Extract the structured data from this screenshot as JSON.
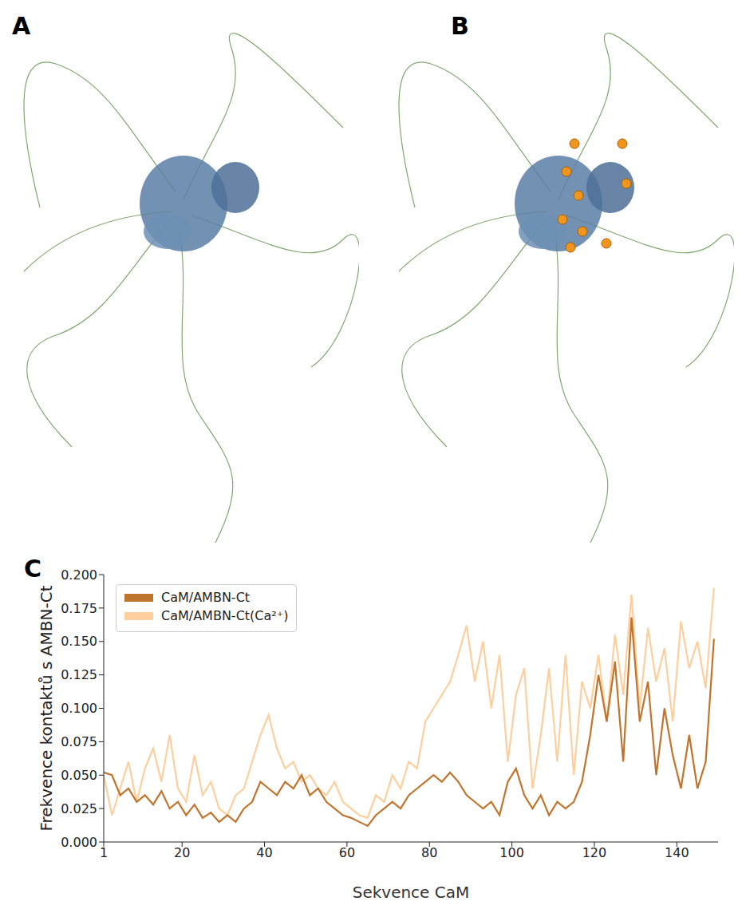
{
  "panel_labels": [
    "A",
    "B",
    "C"
  ],
  "chart_data": {
    "type": "line",
    "x_label": "Sekvence CaM",
    "y_label": "Frekvence kontaktů s AMBN-Ct",
    "x": [
      1,
      3,
      5,
      7,
      9,
      11,
      13,
      15,
      17,
      19,
      21,
      23,
      25,
      27,
      29,
      31,
      33,
      35,
      37,
      39,
      41,
      43,
      45,
      47,
      49,
      51,
      53,
      55,
      57,
      59,
      61,
      63,
      65,
      67,
      69,
      71,
      73,
      75,
      77,
      79,
      81,
      83,
      85,
      87,
      89,
      91,
      93,
      95,
      97,
      99,
      101,
      103,
      105,
      107,
      109,
      111,
      113,
      115,
      117,
      119,
      121,
      123,
      125,
      127,
      129,
      131,
      133,
      135,
      137,
      139,
      141,
      143,
      145,
      147,
      149
    ],
    "series": [
      {
        "name": "CaM/AMBN-Ct",
        "color": "#c0752e",
        "values": [
          0.052,
          0.05,
          0.035,
          0.04,
          0.03,
          0.035,
          0.028,
          0.038,
          0.025,
          0.03,
          0.02,
          0.028,
          0.018,
          0.022,
          0.015,
          0.02,
          0.015,
          0.025,
          0.03,
          0.045,
          0.04,
          0.035,
          0.045,
          0.04,
          0.05,
          0.035,
          0.04,
          0.03,
          0.025,
          0.02,
          0.018,
          0.015,
          0.012,
          0.02,
          0.025,
          0.03,
          0.025,
          0.035,
          0.04,
          0.045,
          0.05,
          0.045,
          0.052,
          0.045,
          0.035,
          0.03,
          0.025,
          0.03,
          0.02,
          0.045,
          0.055,
          0.035,
          0.025,
          0.035,
          0.02,
          0.03,
          0.025,
          0.03,
          0.045,
          0.08,
          0.125,
          0.09,
          0.135,
          0.06,
          0.168,
          0.09,
          0.12,
          0.05,
          0.1,
          0.065,
          0.04,
          0.08,
          0.04,
          0.06,
          0.152
        ]
      },
      {
        "name": "CaM/AMBN-Ct(Ca²⁺)",
        "color": "#fdcf9e",
        "values": [
          0.05,
          0.02,
          0.04,
          0.06,
          0.03,
          0.055,
          0.07,
          0.045,
          0.08,
          0.04,
          0.03,
          0.065,
          0.035,
          0.045,
          0.025,
          0.02,
          0.035,
          0.04,
          0.06,
          0.08,
          0.095,
          0.07,
          0.055,
          0.06,
          0.045,
          0.05,
          0.04,
          0.035,
          0.045,
          0.03,
          0.025,
          0.02,
          0.018,
          0.035,
          0.03,
          0.05,
          0.04,
          0.06,
          0.055,
          0.09,
          0.1,
          0.11,
          0.12,
          0.14,
          0.162,
          0.12,
          0.15,
          0.1,
          0.14,
          0.06,
          0.11,
          0.13,
          0.04,
          0.08,
          0.13,
          0.06,
          0.14,
          0.05,
          0.12,
          0.1,
          0.14,
          0.09,
          0.155,
          0.11,
          0.185,
          0.1,
          0.16,
          0.12,
          0.145,
          0.09,
          0.165,
          0.13,
          0.15,
          0.115,
          0.19
        ]
      }
    ],
    "xlim": [
      1,
      150
    ],
    "xticks": [
      1,
      20,
      40,
      60,
      80,
      100,
      120,
      140
    ],
    "ylim": [
      0,
      0.2
    ],
    "yticks": [
      {
        "value": 0,
        "label": "0.000"
      },
      {
        "value": 0.025,
        "label": "0.025"
      },
      {
        "value": 0.05,
        "label": "0.050"
      },
      {
        "value": 0.075,
        "label": "0.075"
      },
      {
        "value": 0.1,
        "label": "0.100"
      },
      {
        "value": 0.125,
        "label": "0.125"
      },
      {
        "value": 0.15,
        "label": "0.150"
      },
      {
        "value": 0.175,
        "label": "0.175"
      },
      {
        "value": 0.2,
        "label": "0.200"
      }
    ],
    "legend": "upper left",
    "grid": false
  }
}
